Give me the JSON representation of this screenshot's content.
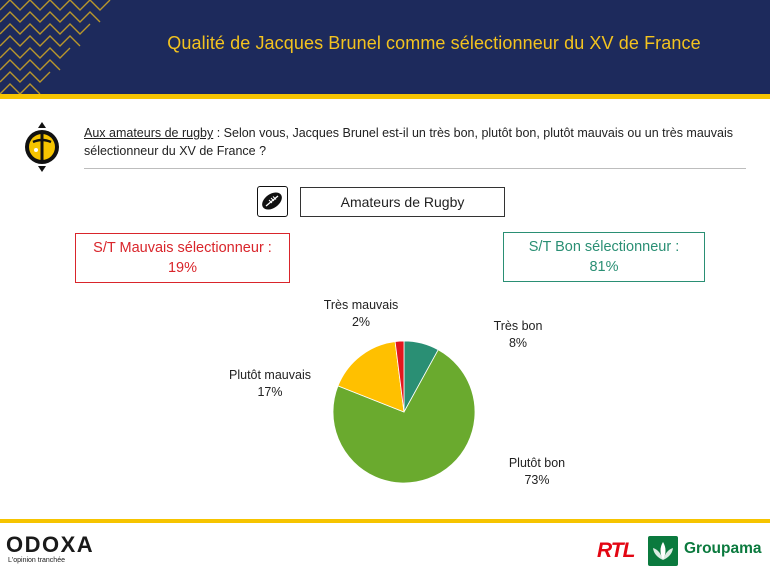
{
  "header": {
    "title": "Qualité de Jacques Brunel comme sélectionneur du XV de France"
  },
  "question": {
    "audience": "Aux amateurs de rugby",
    "text": " : Selon vous, Jacques Brunel est-il un très bon, plutôt bon, plutôt mauvais ou un très mauvais sélectionneur du XV de France ?"
  },
  "segment": {
    "label": "Amateurs de Rugby",
    "icon": "rugby-ball-icon"
  },
  "summary": {
    "bad": {
      "label": "S/T Mauvais sélectionneur :",
      "value": "19%",
      "color": "#d9252b"
    },
    "good": {
      "label": "S/T Bon sélectionneur :",
      "value": "81%",
      "color": "#2a8f74"
    }
  },
  "chart_data": {
    "type": "pie",
    "categories": [
      "Très bon",
      "Plutôt bon",
      "Plutôt mauvais",
      "Très mauvais"
    ],
    "values": [
      8,
      73,
      17,
      2
    ],
    "labels": [
      "8%",
      "73%",
      "17%",
      "2%"
    ],
    "colors": [
      "#2a8f74",
      "#6aaa2e",
      "#ffc000",
      "#e3171d"
    ],
    "start": "top",
    "direction": "clockwise"
  },
  "footer": {
    "brand": "ODOXA",
    "tagline": "L'opinion tranchée",
    "partner1": "RTL",
    "partner2": "Groupama"
  }
}
